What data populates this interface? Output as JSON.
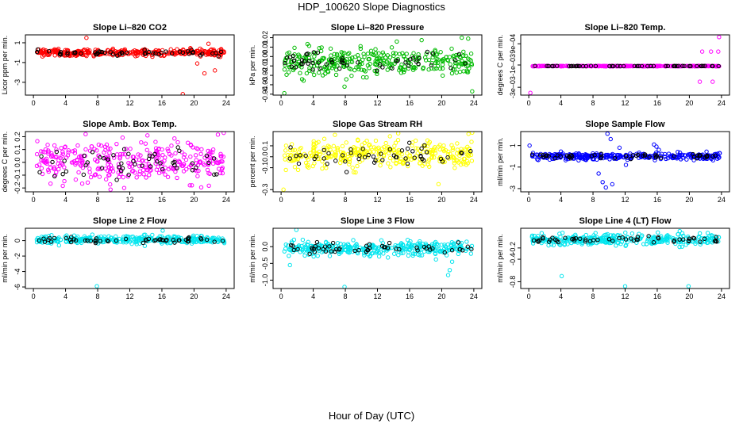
{
  "figure": {
    "title": "HDP_100620  Slope Diagnostics",
    "xlabel": "Hour of Day (UTC)"
  },
  "chart_data": [
    {
      "type": "scatter",
      "title": "Slope Li–820 CO2",
      "ylabel": "Licor ppm per min.",
      "color": "#ff0000",
      "xlim": [
        -1,
        25
      ],
      "ylim": [
        -4.3,
        1.8
      ],
      "xticks": [
        0,
        4,
        8,
        12,
        16,
        20,
        24
      ],
      "ytick_values": [
        1,
        -1,
        -3
      ],
      "ytick_labels": [
        "1",
        "-1",
        "-3"
      ],
      "center": 0.0,
      "spread": 0.18,
      "outliers": [
        [
          6.6,
          1.5
        ],
        [
          18.6,
          -4.2
        ],
        [
          20.4,
          -1.1
        ],
        [
          21.3,
          -2.1
        ],
        [
          22.6,
          -1.8
        ],
        [
          21.8,
          0.9
        ]
      ]
    },
    {
      "type": "scatter",
      "title": "Slope Li–820 Pressure",
      "ylabel": "kPa per min.",
      "color": "#00bb00",
      "xlim": [
        -1,
        25
      ],
      "ylim": [
        -0.041,
        0.023
      ],
      "xticks": [
        0,
        4,
        8,
        12,
        16,
        20,
        24
      ],
      "ytick_values": [
        0.02,
        0.01,
        0,
        -0.01,
        -0.02,
        -0.03,
        -0.04
      ],
      "ytick_labels": [
        "0.02",
        "0.01",
        "0.00",
        "-0.01",
        "-0.02",
        "-0.03",
        "-0.04"
      ],
      "center": -0.005,
      "spread": 0.007,
      "outliers": [
        [
          0.4,
          -0.039
        ],
        [
          7.9,
          -0.032
        ],
        [
          23.8,
          -0.037
        ],
        [
          23.3,
          0.019
        ],
        [
          22.5,
          0.02
        ]
      ]
    },
    {
      "type": "scatter",
      "title": "Slope Li–820 Temp.",
      "ylabel": "degrees C per min.",
      "color": "#ff00ff",
      "xlim": [
        -1,
        25
      ],
      "ylim": [
        -0.0037,
        0.0017
      ],
      "xticks": [
        0,
        4,
        8,
        12,
        16,
        20,
        24
      ],
      "ytick_values": [
        0.0009,
        -0.001,
        -0.003
      ],
      "ytick_labels": [
        "9e–04",
        "-1e–03",
        "-3e–03"
      ],
      "center": -0.0011,
      "spread": 1e-05,
      "outliers": [
        [
          0.2,
          -0.0035
        ],
        [
          21.6,
          0.0002
        ],
        [
          22.7,
          0.0002
        ],
        [
          23.7,
          0.0015
        ],
        [
          23.6,
          0.0002
        ],
        [
          21.3,
          -0.0025
        ],
        [
          22.9,
          -0.0025
        ]
      ]
    },
    {
      "type": "scatter",
      "title": "Slope Amb. Box Temp.",
      "ylabel": "degrees C per min.",
      "color": "#ff00ff",
      "xlim": [
        -1,
        25
      ],
      "ylim": [
        -0.23,
        0.24
      ],
      "xticks": [
        0,
        4,
        8,
        12,
        16,
        20,
        24
      ],
      "ytick_values": [
        0.2,
        0.1,
        0,
        -0.1,
        -0.2
      ],
      "ytick_labels": [
        "0.2",
        "0.1",
        "0.0",
        "-0.1",
        "-0.2"
      ],
      "center": 0.0,
      "spread": 0.075,
      "outliers": [
        [
          6.5,
          0.22
        ],
        [
          14.2,
          0.21
        ],
        [
          11.3,
          -0.2
        ],
        [
          23.7,
          0.23
        ]
      ]
    },
    {
      "type": "scatter",
      "title": "Slope Gas Stream RH",
      "ylabel": "percent per min.",
      "color": "#ffff00",
      "xlim": [
        -1,
        25
      ],
      "ylim": [
        -0.32,
        0.23
      ],
      "xticks": [
        0,
        4,
        8,
        12,
        16,
        20,
        24
      ],
      "ytick_values": [
        0.1,
        0,
        -0.1,
        -0.3
      ],
      "ytick_labels": [
        "0.1",
        "0.0",
        "-0.1",
        "-0.3"
      ],
      "center": 0.02,
      "spread": 0.065,
      "outliers": [
        [
          0.3,
          -0.3
        ],
        [
          23.8,
          0.22
        ],
        [
          19.6,
          -0.25
        ],
        [
          6.7,
          0.2
        ]
      ]
    },
    {
      "type": "scatter",
      "title": "Slope Sample Flow",
      "ylabel": "ml/min per min.",
      "color": "#0000ff",
      "xlim": [
        -1,
        25
      ],
      "ylim": [
        -3.3,
        2.3
      ],
      "xticks": [
        0,
        4,
        8,
        12,
        16,
        20,
        24
      ],
      "ytick_values": [
        1,
        -1,
        -3
      ],
      "ytick_labels": [
        "1",
        "-1",
        "-3"
      ],
      "center": 0.0,
      "spread": 0.15,
      "outliers": [
        [
          9.8,
          2.1
        ],
        [
          10.2,
          1.6
        ],
        [
          9.2,
          -2.4
        ],
        [
          9.6,
          -2.9
        ],
        [
          10.4,
          -2.6
        ],
        [
          8.7,
          -1.6
        ],
        [
          15.6,
          1.1
        ],
        [
          15.9,
          0.9
        ],
        [
          16.2,
          0.6
        ],
        [
          11.3,
          0.8
        ],
        [
          12.1,
          -0.8
        ],
        [
          0.1,
          1.0
        ]
      ]
    },
    {
      "type": "scatter",
      "title": "Slope Line 2 Flow",
      "ylabel": "ml/min per min.",
      "color": "#00e5ee",
      "xlim": [
        -1,
        25
      ],
      "ylim": [
        -6.2,
        1.6
      ],
      "xticks": [
        0,
        4,
        8,
        12,
        16,
        20,
        24
      ],
      "ytick_values": [
        0,
        -2,
        -4,
        -6
      ],
      "ytick_labels": [
        "0",
        "-2",
        "-4",
        "-6"
      ],
      "center": 0.1,
      "spread": 0.25,
      "outliers": [
        [
          7.9,
          -5.9
        ],
        [
          16.1,
          1.3
        ]
      ]
    },
    {
      "type": "scatter",
      "title": "Slope Line 3 Flow",
      "ylabel": "ml/min per min.",
      "color": "#00e5ee",
      "xlim": [
        -1,
        25
      ],
      "ylim": [
        -1.25,
        0.55
      ],
      "xticks": [
        0,
        4,
        8,
        12,
        16,
        20,
        24
      ],
      "ytick_values": [
        0,
        -0.5,
        -1
      ],
      "ytick_labels": [
        "0.0",
        "-0.5",
        "-1.0"
      ],
      "center": -0.05,
      "spread": 0.1,
      "outliers": [
        [
          7.9,
          -1.2
        ],
        [
          1.9,
          0.5
        ],
        [
          20.8,
          -0.85
        ],
        [
          21.0,
          -0.7
        ],
        [
          1.1,
          -0.55
        ],
        [
          21.3,
          -0.45
        ]
      ]
    },
    {
      "type": "scatter",
      "title": "Slope Line 4 (LT) Flow",
      "ylabel": "ml/min per min.",
      "color": "#00e5ee",
      "xlim": [
        -1,
        25
      ],
      "ylim": [
        -0.92,
        0.15
      ],
      "xticks": [
        0,
        4,
        8,
        12,
        16,
        20,
        24
      ],
      "ytick_values": [
        -0.2,
        -0.4,
        -0.8
      ],
      "ytick_labels": [
        "-0.2",
        "-0.4",
        "-0.8"
      ],
      "center": -0.05,
      "spread": 0.05,
      "outliers": [
        [
          4.1,
          -0.7
        ],
        [
          12.0,
          -0.88
        ],
        [
          19.9,
          -0.88
        ],
        [
          18.8,
          0.1
        ]
      ]
    }
  ]
}
